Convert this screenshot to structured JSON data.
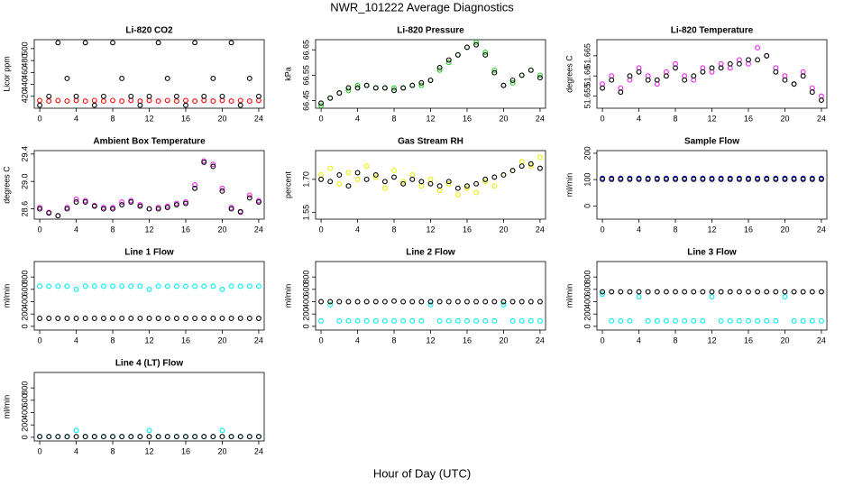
{
  "title": "NWR_101222  Average Diagnostics",
  "xlabel": "Hour of Day (UTC)",
  "chart_data": [
    {
      "type": "scatter",
      "title": "Li-820 CO2",
      "ylabel": "Licor ppm",
      "xlim": [
        -0.6,
        24.6
      ],
      "xticks": [
        0,
        4,
        8,
        12,
        16,
        20,
        24
      ],
      "ylim": [
        400,
        515
      ],
      "yticks": [
        420,
        440,
        460,
        480,
        500
      ],
      "x": [
        0,
        1,
        2,
        3,
        4,
        5,
        6,
        7,
        8,
        9,
        10,
        11,
        12,
        13,
        14,
        15,
        16,
        17,
        18,
        19,
        20,
        21,
        22,
        23,
        24
      ],
      "series": [
        {
          "color": "#ff0000",
          "values": [
            413,
            412,
            413,
            412,
            413,
            412,
            413,
            412,
            413,
            412,
            413,
            412,
            413,
            412,
            413,
            412,
            413,
            412,
            413,
            412,
            413,
            412,
            413,
            412,
            413
          ]
        },
        {
          "color": "#000000",
          "values": [
            405,
            420,
            510,
            450,
            420,
            510,
            405,
            420,
            510,
            450,
            420,
            405,
            420,
            510,
            450,
            420,
            405,
            510,
            420,
            450,
            420,
            510,
            405,
            450,
            420
          ]
        }
      ]
    },
    {
      "type": "scatter",
      "title": "Li-820 Pressure",
      "ylabel": "kPa",
      "xlim": [
        -0.6,
        24.6
      ],
      "xticks": [
        0,
        4,
        8,
        12,
        16,
        20,
        24
      ],
      "ylim": [
        66.42,
        66.69
      ],
      "yticks": [
        66.45,
        66.55,
        66.65
      ],
      "x": [
        0,
        1,
        2,
        3,
        4,
        5,
        6,
        7,
        8,
        9,
        10,
        11,
        12,
        13,
        14,
        15,
        16,
        17,
        18,
        19,
        20,
        21,
        22,
        23,
        24
      ],
      "series": [
        {
          "color": "#22cc22",
          "values": [
            66.43,
            66.46,
            66.48,
            66.49,
            66.51,
            66.51,
            66.5,
            66.5,
            66.5,
            66.5,
            66.51,
            66.51,
            66.53,
            66.57,
            66.6,
            66.63,
            66.66,
            66.68,
            66.64,
            66.57,
            66.51,
            66.52,
            66.55,
            66.57,
            66.55
          ]
        },
        {
          "color": "#000000",
          "values": [
            66.44,
            66.46,
            66.48,
            66.5,
            66.5,
            66.51,
            66.5,
            66.5,
            66.49,
            66.5,
            66.51,
            66.52,
            66.53,
            66.58,
            66.61,
            66.63,
            66.66,
            66.67,
            66.63,
            66.56,
            66.51,
            66.53,
            66.55,
            66.57,
            66.54
          ]
        }
      ]
    },
    {
      "type": "scatter",
      "title": "Li-820 Temperature",
      "ylabel": "degrees C",
      "xlim": [
        -0.6,
        24.6
      ],
      "xticks": [
        0,
        4,
        8,
        12,
        16,
        20,
        24
      ],
      "ylim": [
        51.652,
        51.669
      ],
      "yticks": [
        51.655,
        51.66,
        51.665
      ],
      "x": [
        0,
        1,
        2,
        3,
        4,
        5,
        6,
        7,
        8,
        9,
        10,
        11,
        12,
        13,
        14,
        15,
        16,
        17,
        18,
        19,
        20,
        21,
        22,
        23,
        24
      ],
      "series": [
        {
          "color": "#ee22ee",
          "values": [
            51.658,
            51.66,
            51.657,
            51.659,
            51.662,
            51.66,
            51.658,
            51.661,
            51.663,
            51.66,
            51.659,
            51.662,
            51.661,
            51.663,
            51.662,
            51.664,
            51.663,
            51.667,
            51.665,
            51.662,
            51.66,
            51.658,
            51.661,
            51.657,
            51.655
          ]
        },
        {
          "color": "#000000",
          "values": [
            51.657,
            51.659,
            51.656,
            51.66,
            51.661,
            51.659,
            51.659,
            51.66,
            51.662,
            51.659,
            51.66,
            51.661,
            51.662,
            51.662,
            51.663,
            51.663,
            51.664,
            51.664,
            51.665,
            51.661,
            51.659,
            51.658,
            51.66,
            51.656,
            51.654
          ]
        }
      ]
    },
    {
      "type": "scatter",
      "title": "Ambient Box Temperature",
      "ylabel": "degrees C",
      "xlim": [
        -0.6,
        24.6
      ],
      "xticks": [
        0,
        4,
        8,
        12,
        16,
        20,
        24
      ],
      "ylim": [
        28.45,
        29.45
      ],
      "yticks": [
        28.6,
        {
          "value": 29,
          "label": "29.0"
        },
        29.4
      ],
      "x": [
        0,
        1,
        2,
        3,
        4,
        5,
        6,
        7,
        8,
        9,
        10,
        11,
        12,
        13,
        14,
        15,
        16,
        17,
        18,
        19,
        20,
        21,
        22,
        23,
        24
      ],
      "series": [
        {
          "color": "#ee22ee",
          "values": [
            28.62,
            28.55,
            28.5,
            28.62,
            28.74,
            28.72,
            28.65,
            28.62,
            28.62,
            28.7,
            28.72,
            28.66,
            28.6,
            28.62,
            28.64,
            28.68,
            28.7,
            28.95,
            29.3,
            29.25,
            28.9,
            28.62,
            28.55,
            28.8,
            28.72
          ]
        },
        {
          "color": "#000000",
          "values": [
            28.6,
            28.54,
            28.5,
            28.6,
            28.7,
            28.7,
            28.64,
            28.6,
            28.6,
            28.66,
            28.7,
            28.64,
            28.6,
            28.6,
            28.62,
            28.66,
            28.68,
            28.9,
            29.28,
            29.22,
            28.86,
            28.6,
            28.56,
            28.76,
            28.7
          ]
        }
      ]
    },
    {
      "type": "scatter",
      "title": "Gas Stream RH",
      "ylabel": "percent",
      "xlim": [
        -0.6,
        24.6
      ],
      "xticks": [
        0,
        4,
        8,
        12,
        16,
        20,
        24
      ],
      "ylim": [
        1.52,
        1.83
      ],
      "yticks": [
        1.55,
        {
          "value": 1.7,
          "label": "1.70"
        }
      ],
      "x": [
        0,
        1,
        2,
        3,
        4,
        5,
        6,
        7,
        8,
        9,
        10,
        11,
        12,
        13,
        14,
        15,
        16,
        17,
        18,
        19,
        20,
        21,
        22,
        23,
        24
      ],
      "series": [
        {
          "color": "#eeee00",
          "values": [
            1.72,
            1.75,
            1.68,
            1.73,
            1.7,
            1.76,
            1.71,
            1.66,
            1.74,
            1.69,
            1.72,
            1.67,
            1.7,
            1.65,
            1.68,
            1.63,
            1.66,
            1.64,
            1.69,
            1.67,
            1.72,
            1.74,
            1.78,
            1.76,
            1.8
          ]
        },
        {
          "color": "#000000",
          "values": [
            1.7,
            1.69,
            1.72,
            1.67,
            1.73,
            1.7,
            1.72,
            1.69,
            1.71,
            1.68,
            1.7,
            1.69,
            1.68,
            1.67,
            1.69,
            1.66,
            1.67,
            1.68,
            1.7,
            1.71,
            1.72,
            1.74,
            1.76,
            1.77,
            1.75
          ]
        }
      ]
    },
    {
      "type": "scatter",
      "title": "Sample Flow",
      "ylabel": "ml/min",
      "xlim": [
        -0.6,
        24.6
      ],
      "xticks": [
        0,
        4,
        8,
        12,
        16,
        20,
        24
      ],
      "ylim": [
        -50,
        210
      ],
      "yticks": [
        0,
        100,
        200
      ],
      "x": [
        0,
        1,
        2,
        3,
        4,
        5,
        6,
        7,
        8,
        9,
        10,
        11,
        12,
        13,
        14,
        15,
        16,
        17,
        18,
        19,
        20,
        21,
        22,
        23,
        24
      ],
      "series": [
        {
          "color": "#0000dd",
          "values": [
            105,
            105,
            105,
            105,
            105,
            105,
            105,
            105,
            105,
            105,
            105,
            105,
            105,
            105,
            105,
            105,
            105,
            105,
            105,
            105,
            105,
            105,
            105,
            105,
            105
          ]
        },
        {
          "color": "#000000",
          "values": [
            101,
            101,
            101,
            101,
            101,
            101,
            101,
            101,
            101,
            101,
            101,
            101,
            101,
            101,
            101,
            101,
            101,
            101,
            101,
            101,
            101,
            101,
            101,
            101,
            101
          ]
        }
      ]
    },
    {
      "type": "scatter",
      "title": "Line 1 Flow",
      "ylabel": "ml/min",
      "xlim": [
        -0.6,
        24.6
      ],
      "xticks": [
        0,
        4,
        8,
        12,
        16,
        20,
        24
      ],
      "ylim": [
        -60,
        1050
      ],
      "yticks": [
        0,
        200,
        400,
        600,
        800
      ],
      "x": [
        0,
        1,
        2,
        3,
        4,
        5,
        6,
        7,
        8,
        9,
        10,
        11,
        12,
        13,
        14,
        15,
        16,
        17,
        18,
        19,
        20,
        21,
        22,
        23,
        24
      ],
      "series": [
        {
          "color": "#00eeee",
          "values": [
            650,
            650,
            650,
            650,
            600,
            650,
            650,
            650,
            650,
            650,
            650,
            650,
            600,
            650,
            650,
            650,
            650,
            650,
            650,
            650,
            600,
            650,
            650,
            650,
            650
          ]
        },
        {
          "color": "#000000",
          "values": [
            130,
            130,
            130,
            130,
            130,
            130,
            130,
            130,
            130,
            130,
            130,
            130,
            130,
            130,
            130,
            130,
            130,
            130,
            130,
            130,
            130,
            130,
            130,
            130,
            130
          ]
        }
      ]
    },
    {
      "type": "scatter",
      "title": "Line 2 Flow",
      "ylabel": "ml/min",
      "xlim": [
        -0.6,
        24.6
      ],
      "xticks": [
        0,
        4,
        8,
        12,
        16,
        20,
        24
      ],
      "ylim": [
        -60,
        1050
      ],
      "yticks": [
        0,
        200,
        400,
        600,
        800
      ],
      "x": [
        0,
        1,
        2,
        3,
        4,
        5,
        6,
        7,
        8,
        9,
        10,
        11,
        12,
        13,
        14,
        15,
        16,
        17,
        18,
        19,
        20,
        21,
        22,
        23,
        24
      ],
      "series": [
        {
          "color": "#00eeee",
          "values": [
            90,
            350,
            90,
            90,
            90,
            90,
            90,
            90,
            90,
            90,
            90,
            90,
            350,
            90,
            90,
            90,
            90,
            90,
            90,
            90,
            350,
            90,
            90,
            90,
            90
          ]
        },
        {
          "color": "#000000",
          "values": [
            400,
            400,
            400,
            400,
            400,
            400,
            400,
            400,
            410,
            400,
            400,
            400,
            400,
            400,
            400,
            400,
            400,
            400,
            400,
            400,
            400,
            400,
            400,
            400,
            400
          ]
        }
      ]
    },
    {
      "type": "scatter",
      "title": "Line 3 Flow",
      "ylabel": "ml/min",
      "xlim": [
        -0.6,
        24.6
      ],
      "xticks": [
        0,
        4,
        8,
        12,
        16,
        20,
        24
      ],
      "ylim": [
        -60,
        1050
      ],
      "yticks": [
        0,
        200,
        400,
        600,
        800
      ],
      "x": [
        0,
        1,
        2,
        3,
        4,
        5,
        6,
        7,
        8,
        9,
        10,
        11,
        12,
        13,
        14,
        15,
        16,
        17,
        18,
        19,
        20,
        21,
        22,
        23,
        24
      ],
      "series": [
        {
          "color": "#00eeee",
          "values": [
            520,
            90,
            90,
            90,
            480,
            90,
            90,
            90,
            90,
            90,
            90,
            90,
            480,
            90,
            90,
            90,
            90,
            90,
            90,
            90,
            480,
            90,
            90,
            90,
            90
          ]
        },
        {
          "color": "#000000",
          "values": [
            560,
            560,
            560,
            560,
            560,
            560,
            560,
            560,
            560,
            560,
            560,
            560,
            560,
            560,
            560,
            560,
            560,
            560,
            560,
            560,
            560,
            560,
            560,
            560,
            560
          ]
        }
      ]
    },
    {
      "type": "scatter",
      "title": "Line 4 (LT) Flow",
      "ylabel": "ml/min",
      "xlim": [
        -0.6,
        24.6
      ],
      "xticks": [
        0,
        4,
        8,
        12,
        16,
        20,
        24
      ],
      "ylim": [
        -60,
        1050
      ],
      "yticks": [
        0,
        200,
        400,
        600,
        800
      ],
      "x": [
        0,
        1,
        2,
        3,
        4,
        5,
        6,
        7,
        8,
        9,
        10,
        11,
        12,
        13,
        14,
        15,
        16,
        17,
        18,
        19,
        20,
        21,
        22,
        23,
        24
      ],
      "series": [
        {
          "color": "#00eeee",
          "values": [
            10,
            10,
            10,
            10,
            110,
            10,
            10,
            10,
            10,
            10,
            10,
            10,
            110,
            10,
            10,
            10,
            10,
            10,
            10,
            10,
            110,
            10,
            10,
            10,
            10
          ]
        },
        {
          "color": "#000000",
          "values": [
            12,
            12,
            12,
            12,
            12,
            12,
            12,
            12,
            12,
            12,
            12,
            12,
            12,
            12,
            12,
            12,
            12,
            12,
            12,
            12,
            12,
            12,
            12,
            12,
            12
          ]
        }
      ]
    }
  ]
}
